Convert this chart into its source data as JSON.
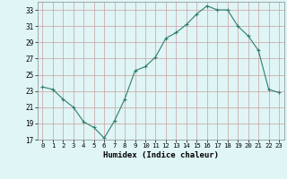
{
  "x": [
    0,
    1,
    2,
    3,
    4,
    5,
    6,
    7,
    8,
    9,
    10,
    11,
    12,
    13,
    14,
    15,
    16,
    17,
    18,
    19,
    20,
    21,
    22,
    23
  ],
  "y": [
    23.5,
    23.2,
    22.0,
    21.0,
    19.2,
    18.5,
    17.2,
    19.3,
    22.0,
    25.5,
    26.0,
    27.2,
    29.5,
    30.2,
    31.2,
    32.5,
    33.5,
    33.0,
    33.0,
    31.0,
    29.8,
    28.0,
    23.2,
    22.8
  ],
  "line_color": "#2e7d6e",
  "marker": "+",
  "marker_size": 3,
  "marker_lw": 0.8,
  "line_width": 0.8,
  "bg_color": "#e0f5f5",
  "grid_color": "#c8a0a0",
  "xlabel": "Humidex (Indice chaleur)",
  "xlim": [
    -0.5,
    23.5
  ],
  "ylim": [
    17,
    34
  ],
  "yticks": [
    17,
    19,
    21,
    23,
    25,
    27,
    29,
    31,
    33
  ],
  "xticks": [
    0,
    1,
    2,
    3,
    4,
    5,
    6,
    7,
    8,
    9,
    10,
    11,
    12,
    13,
    14,
    15,
    16,
    17,
    18,
    19,
    20,
    21,
    22,
    23
  ]
}
